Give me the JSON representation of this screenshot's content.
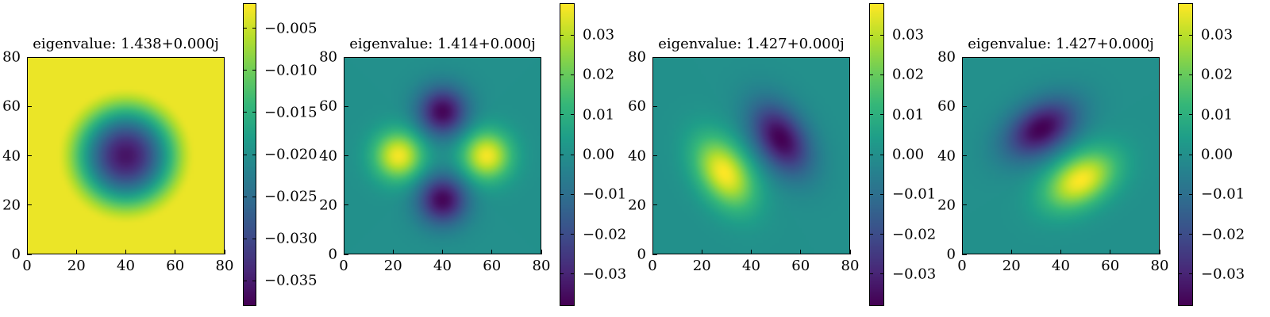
{
  "chart_data": [
    {
      "type": "heatmap",
      "title": "eigenvalue: 1.438+0.000j",
      "mode": "ring",
      "x_ticks": [
        "0",
        "20",
        "40",
        "60",
        "80"
      ],
      "y_ticks": [
        "0",
        "20",
        "40",
        "60",
        "80"
      ],
      "xlim": [
        0,
        80
      ],
      "ylim": [
        0,
        80
      ],
      "colorbar": {
        "range": [
          -0.038,
          -0.002
        ],
        "tick_values": [
          -0.035,
          -0.03,
          -0.025,
          -0.02,
          -0.015,
          -0.01,
          -0.005
        ],
        "tick_labels": [
          "−0.035",
          "−0.030",
          "−0.025",
          "−0.020",
          "−0.015",
          "−0.010",
          "−0.005"
        ]
      }
    },
    {
      "type": "heatmap",
      "title": "eigenvalue: 1.414+0.000j",
      "mode": "quad",
      "x_ticks": [
        "0",
        "20",
        "40",
        "60",
        "80"
      ],
      "y_ticks": [
        "0",
        "20",
        "40",
        "60",
        "80"
      ],
      "xlim": [
        0,
        80
      ],
      "ylim": [
        0,
        80
      ],
      "colorbar": {
        "range": [
          -0.038,
          0.038
        ],
        "tick_values": [
          -0.03,
          -0.02,
          -0.01,
          0.0,
          0.01,
          0.02,
          0.03
        ],
        "tick_labels": [
          "−0.03",
          "−0.02",
          "−0.01",
          "0.00",
          "0.01",
          "0.02",
          "0.03"
        ]
      }
    },
    {
      "type": "heatmap",
      "title": "eigenvalue: 1.427+0.000j",
      "mode": "dipole-a",
      "x_ticks": [
        "0",
        "20",
        "40",
        "60",
        "80"
      ],
      "y_ticks": [
        "0",
        "20",
        "40",
        "60",
        "80"
      ],
      "xlim": [
        0,
        80
      ],
      "ylim": [
        0,
        80
      ],
      "colorbar": {
        "range": [
          -0.038,
          0.038
        ],
        "tick_values": [
          -0.03,
          -0.02,
          -0.01,
          0.0,
          0.01,
          0.02,
          0.03
        ],
        "tick_labels": [
          "−0.03",
          "−0.02",
          "−0.01",
          "0.00",
          "0.01",
          "0.02",
          "0.03"
        ]
      }
    },
    {
      "type": "heatmap",
      "title": "eigenvalue: 1.427+0.000j",
      "mode": "dipole-b",
      "x_ticks": [
        "0",
        "20",
        "40",
        "60",
        "80"
      ],
      "y_ticks": [
        "0",
        "20",
        "40",
        "60",
        "80"
      ],
      "xlim": [
        0,
        80
      ],
      "ylim": [
        0,
        80
      ],
      "colorbar": {
        "range": [
          -0.038,
          0.038
        ],
        "tick_values": [
          -0.03,
          -0.02,
          -0.01,
          0.0,
          0.01,
          0.02,
          0.03
        ],
        "tick_labels": [
          "−0.03",
          "−0.02",
          "−0.01",
          "0.00",
          "0.01",
          "0.02",
          "0.03"
        ]
      }
    }
  ],
  "colormap": "viridis"
}
